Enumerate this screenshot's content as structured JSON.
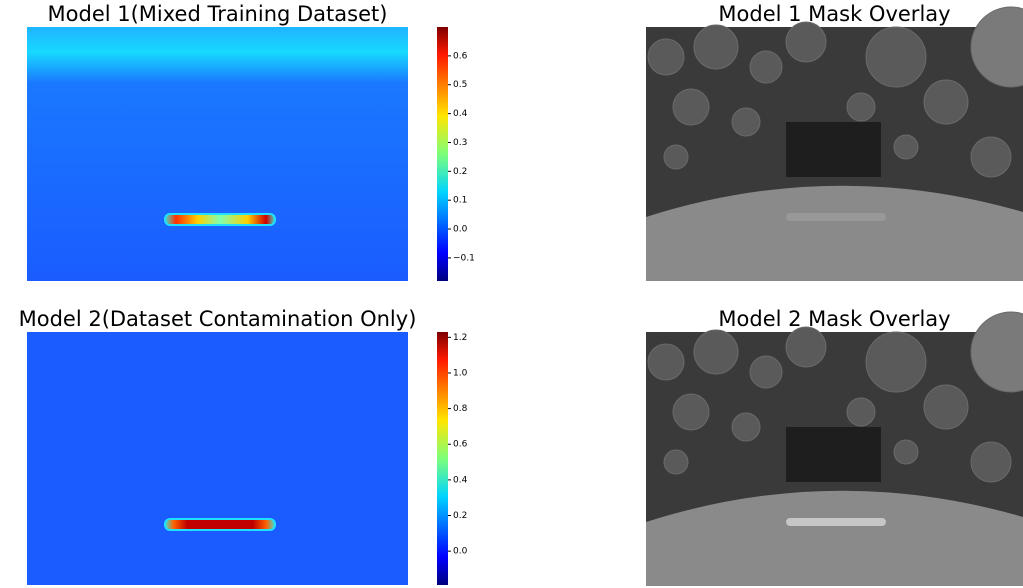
{
  "chart_data": [
    {
      "type": "heatmap",
      "title": "Model 1(Mixed Training Dataset)",
      "ylim": [
        -0.18,
        0.7
      ],
      "yticks": [
        {
          "value": -0.1,
          "label": "−0.1"
        },
        {
          "value": 0,
          "label": "0.0"
        },
        0.1,
        0.2,
        0.3,
        0.4,
        0.5,
        0.6
      ]
    },
    {
      "type": "image",
      "title": "Model 1 Mask Overlay"
    },
    {
      "type": "heatmap",
      "title": "Model 2(Dataset Contamination Only)",
      "ylim": [
        -0.19,
        1.23
      ],
      "yticks": [
        {
          "value": 0,
          "label": "0.0"
        },
        0.2,
        0.4,
        0.6,
        0.8,
        {
          "value": 1,
          "label": "1.0"
        },
        1.2
      ]
    },
    {
      "type": "image",
      "title": "Model 2 Mask Overlay"
    }
  ]
}
